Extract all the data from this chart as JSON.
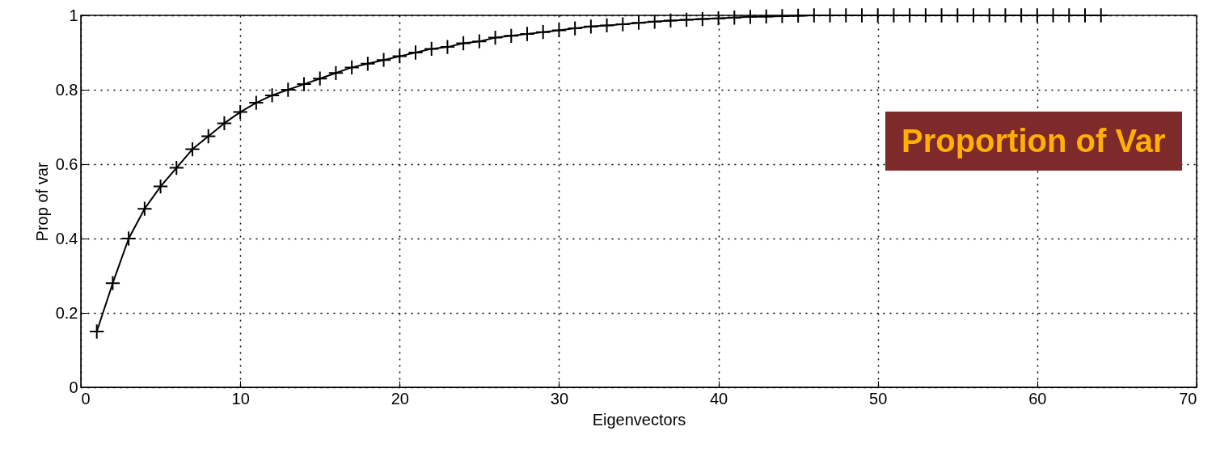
{
  "chart_data": {
    "type": "line",
    "xlabel": "Eigenvectors",
    "ylabel": "Prop of var",
    "x": [
      1,
      2,
      3,
      4,
      5,
      6,
      7,
      8,
      9,
      10,
      11,
      12,
      13,
      14,
      15,
      16,
      17,
      18,
      19,
      20,
      21,
      22,
      23,
      24,
      25,
      26,
      27,
      28,
      29,
      30,
      31,
      32,
      33,
      34,
      35,
      36,
      37,
      38,
      39,
      40,
      41,
      42,
      43,
      44,
      45,
      46,
      47,
      48,
      49,
      50,
      51,
      52,
      53,
      54,
      55,
      56,
      57,
      58,
      59,
      60,
      61,
      62,
      63,
      64
    ],
    "series": [
      {
        "color": "#000000",
        "values": [
          0.15,
          0.28,
          0.4,
          0.48,
          0.54,
          0.59,
          0.64,
          0.675,
          0.71,
          0.74,
          0.765,
          0.785,
          0.8,
          0.815,
          0.83,
          0.845,
          0.86,
          0.87,
          0.88,
          0.89,
          0.9,
          0.91,
          0.915,
          0.925,
          0.93,
          0.94,
          0.945,
          0.95,
          0.955,
          0.96,
          0.965,
          0.97,
          0.973,
          0.976,
          0.98,
          0.983,
          0.986,
          0.988,
          0.99,
          0.992,
          0.994,
          0.996,
          0.997,
          0.998,
          0.999,
          1,
          1,
          1,
          1,
          1,
          1,
          1,
          1,
          1,
          1,
          1,
          1,
          1,
          1,
          1,
          1,
          1,
          1,
          1
        ]
      }
    ],
    "xlim": [
      0,
      70
    ],
    "xticks": [
      0,
      10,
      20,
      30,
      40,
      50,
      60,
      70
    ],
    "ylim": [
      0,
      1
    ],
    "yticks": [
      0,
      0.2,
      0.4,
      0.6,
      0.8,
      1
    ],
    "grid": true,
    "marker": "cross",
    "line_style": "solid",
    "annotations": [
      "Proportion of Var"
    ]
  }
}
